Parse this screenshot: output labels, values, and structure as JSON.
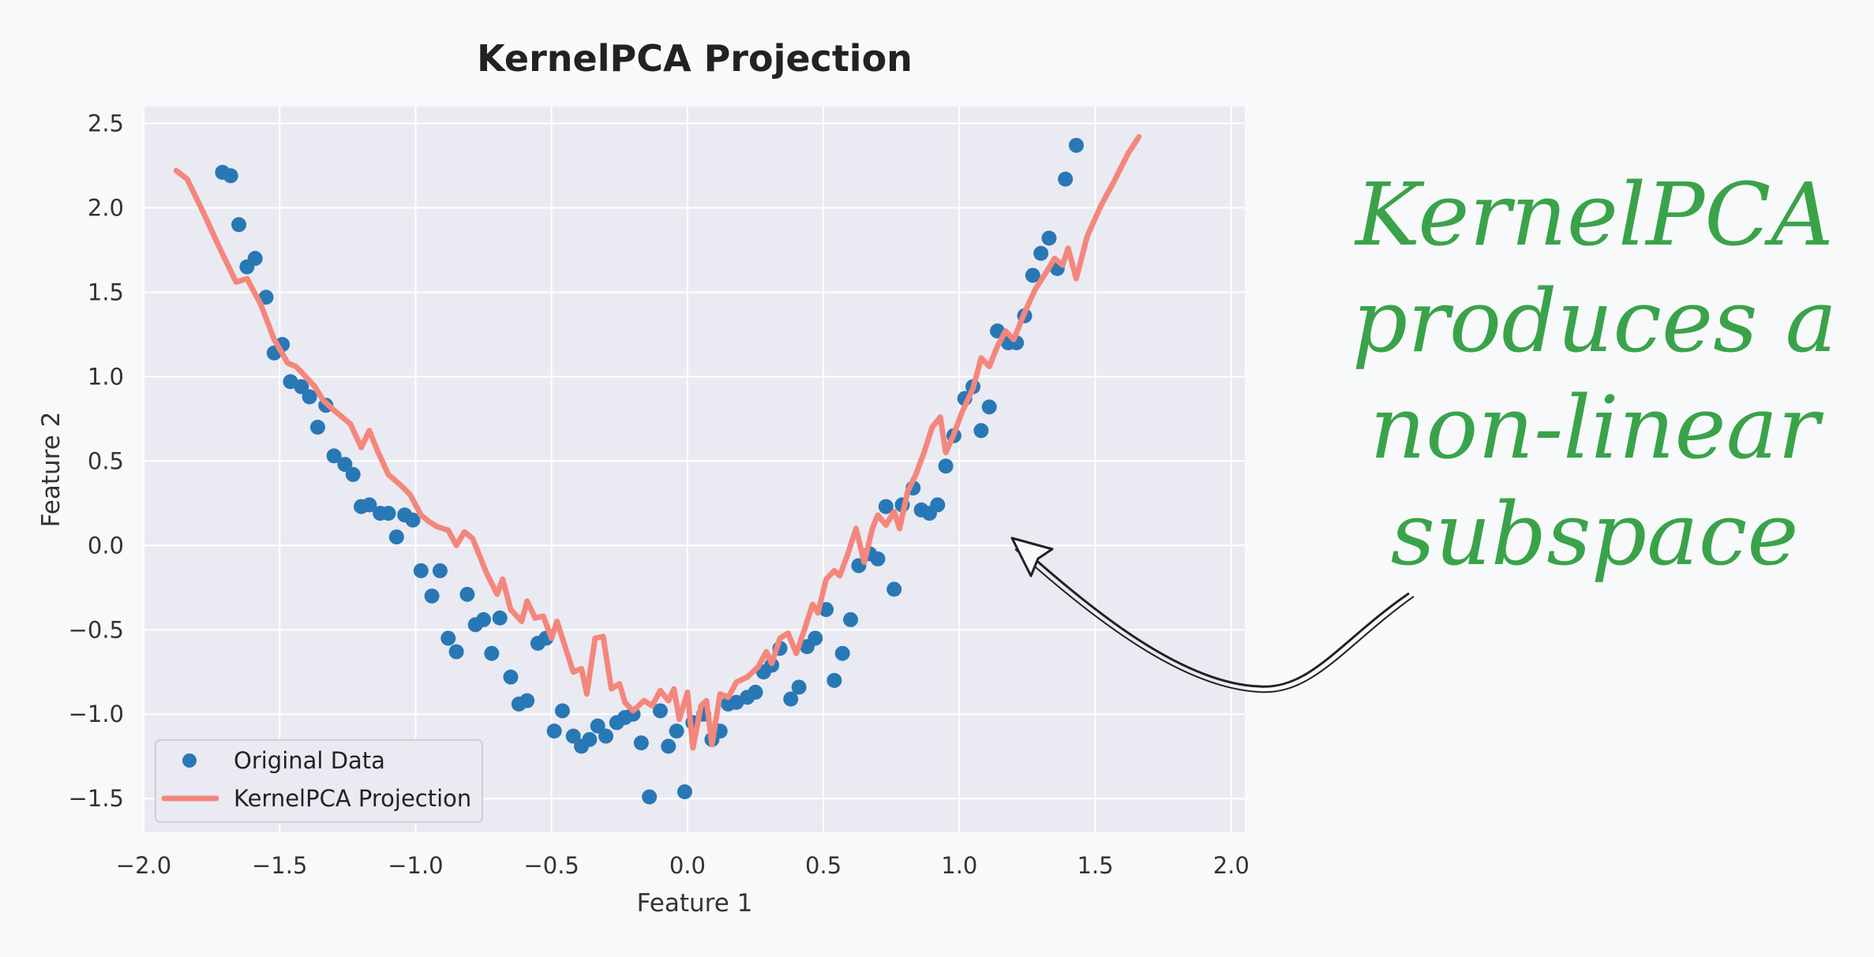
{
  "chart_data": {
    "type": "scatter",
    "title": "KernelPCA Projection",
    "xlabel": "Feature 1",
    "ylabel": "Feature 2",
    "xlim": [
      -2.0,
      2.05
    ],
    "ylim": [
      -1.7,
      2.6
    ],
    "xticks": [
      -2.0,
      -1.5,
      -1.0,
      -0.5,
      0.0,
      0.5,
      1.0,
      1.5,
      2.0
    ],
    "xtick_labels": [
      "−2.0",
      "−1.5",
      "−1.0",
      "−0.5",
      "0.0",
      "0.5",
      "1.0",
      "1.5",
      "2.0"
    ],
    "yticks": [
      -1.5,
      -1.0,
      -0.5,
      0.0,
      0.5,
      1.0,
      1.5,
      2.0,
      2.5
    ],
    "ytick_labels": [
      "−1.5",
      "−1.0",
      "−0.5",
      "0.0",
      "0.5",
      "1.0",
      "1.5",
      "2.0",
      "2.5"
    ],
    "grid": true,
    "legend_position": "bottom-left",
    "series": [
      {
        "name": "Original Data",
        "kind": "scatter",
        "color": "#2878b5",
        "points": [
          [
            -1.71,
            2.21
          ],
          [
            -1.68,
            2.19
          ],
          [
            -1.65,
            1.9
          ],
          [
            -1.62,
            1.65
          ],
          [
            -1.59,
            1.7
          ],
          [
            -1.55,
            1.47
          ],
          [
            -1.52,
            1.14
          ],
          [
            -1.49,
            1.19
          ],
          [
            -1.46,
            0.97
          ],
          [
            -1.42,
            0.94
          ],
          [
            -1.39,
            0.88
          ],
          [
            -1.36,
            0.7
          ],
          [
            -1.33,
            0.83
          ],
          [
            -1.3,
            0.53
          ],
          [
            -1.26,
            0.48
          ],
          [
            -1.23,
            0.42
          ],
          [
            -1.2,
            0.23
          ],
          [
            -1.17,
            0.24
          ],
          [
            -1.13,
            0.19
          ],
          [
            -1.1,
            0.19
          ],
          [
            -1.07,
            0.05
          ],
          [
            -1.04,
            0.18
          ],
          [
            -1.01,
            0.15
          ],
          [
            -0.98,
            -0.15
          ],
          [
            -0.94,
            -0.3
          ],
          [
            -0.91,
            -0.15
          ],
          [
            -0.88,
            -0.55
          ],
          [
            -0.85,
            -0.63
          ],
          [
            -0.81,
            -0.29
          ],
          [
            -0.78,
            -0.47
          ],
          [
            -0.75,
            -0.44
          ],
          [
            -0.72,
            -0.64
          ],
          [
            -0.69,
            -0.43
          ],
          [
            -0.65,
            -0.78
          ],
          [
            -0.62,
            -0.94
          ],
          [
            -0.59,
            -0.92
          ],
          [
            -0.55,
            -0.58
          ],
          [
            -0.52,
            -0.55
          ],
          [
            -0.49,
            -1.1
          ],
          [
            -0.46,
            -0.98
          ],
          [
            -0.42,
            -1.13
          ],
          [
            -0.39,
            -1.19
          ],
          [
            -0.36,
            -1.15
          ],
          [
            -0.33,
            -1.07
          ],
          [
            -0.3,
            -1.13
          ],
          [
            -0.26,
            -1.05
          ],
          [
            -0.23,
            -1.02
          ],
          [
            -0.2,
            -1.0
          ],
          [
            -0.17,
            -1.17
          ],
          [
            -0.14,
            -1.49
          ],
          [
            -0.1,
            -0.98
          ],
          [
            -0.07,
            -1.19
          ],
          [
            -0.04,
            -1.1
          ],
          [
            -0.01,
            -1.46
          ],
          [
            0.02,
            -1.05
          ],
          [
            0.06,
            -1.0
          ],
          [
            0.09,
            -1.15
          ],
          [
            0.12,
            -1.1
          ],
          [
            0.15,
            -0.94
          ],
          [
            0.18,
            -0.93
          ],
          [
            0.22,
            -0.9
          ],
          [
            0.25,
            -0.87
          ],
          [
            0.28,
            -0.75
          ],
          [
            0.31,
            -0.71
          ],
          [
            0.34,
            -0.61
          ],
          [
            0.38,
            -0.91
          ],
          [
            0.41,
            -0.84
          ],
          [
            0.44,
            -0.6
          ],
          [
            0.47,
            -0.55
          ],
          [
            0.51,
            -0.38
          ],
          [
            0.54,
            -0.8
          ],
          [
            0.57,
            -0.64
          ],
          [
            0.6,
            -0.44
          ],
          [
            0.63,
            -0.12
          ],
          [
            0.67,
            -0.05
          ],
          [
            0.7,
            -0.08
          ],
          [
            0.73,
            0.23
          ],
          [
            0.76,
            -0.26
          ],
          [
            0.79,
            0.24
          ],
          [
            0.83,
            0.34
          ],
          [
            0.86,
            0.21
          ],
          [
            0.89,
            0.19
          ],
          [
            0.92,
            0.24
          ],
          [
            0.95,
            0.47
          ],
          [
            0.98,
            0.65
          ],
          [
            1.02,
            0.87
          ],
          [
            1.05,
            0.94
          ],
          [
            1.08,
            0.68
          ],
          [
            1.11,
            0.82
          ],
          [
            1.14,
            1.27
          ],
          [
            1.18,
            1.2
          ],
          [
            1.21,
            1.2
          ],
          [
            1.24,
            1.36
          ],
          [
            1.27,
            1.6
          ],
          [
            1.3,
            1.73
          ],
          [
            1.33,
            1.82
          ],
          [
            1.36,
            1.64
          ],
          [
            1.39,
            2.17
          ],
          [
            1.43,
            2.37
          ]
        ]
      },
      {
        "name": "KernelPCA Projection",
        "kind": "line",
        "color": "#f4867c",
        "points": [
          [
            -1.88,
            2.22
          ],
          [
            -1.84,
            2.17
          ],
          [
            -1.78,
            1.97
          ],
          [
            -1.72,
            1.76
          ],
          [
            -1.66,
            1.56
          ],
          [
            -1.62,
            1.58
          ],
          [
            -1.57,
            1.43
          ],
          [
            -1.52,
            1.22
          ],
          [
            -1.47,
            1.08
          ],
          [
            -1.44,
            1.06
          ],
          [
            -1.41,
            1.01
          ],
          [
            -1.37,
            0.94
          ],
          [
            -1.34,
            0.86
          ],
          [
            -1.3,
            0.8
          ],
          [
            -1.24,
            0.72
          ],
          [
            -1.2,
            0.58
          ],
          [
            -1.17,
            0.68
          ],
          [
            -1.14,
            0.56
          ],
          [
            -1.1,
            0.42
          ],
          [
            -1.05,
            0.35
          ],
          [
            -1.02,
            0.3
          ],
          [
            -0.98,
            0.18
          ],
          [
            -0.95,
            0.14
          ],
          [
            -0.92,
            0.11
          ],
          [
            -0.88,
            0.09
          ],
          [
            -0.85,
            0.0
          ],
          [
            -0.82,
            0.08
          ],
          [
            -0.79,
            0.04
          ],
          [
            -0.74,
            -0.16
          ],
          [
            -0.7,
            -0.29
          ],
          [
            -0.68,
            -0.2
          ],
          [
            -0.65,
            -0.38
          ],
          [
            -0.61,
            -0.45
          ],
          [
            -0.59,
            -0.33
          ],
          [
            -0.56,
            -0.43
          ],
          [
            -0.53,
            -0.42
          ],
          [
            -0.5,
            -0.55
          ],
          [
            -0.48,
            -0.45
          ],
          [
            -0.45,
            -0.6
          ],
          [
            -0.42,
            -0.75
          ],
          [
            -0.39,
            -0.73
          ],
          [
            -0.37,
            -0.88
          ],
          [
            -0.34,
            -0.55
          ],
          [
            -0.31,
            -0.54
          ],
          [
            -0.28,
            -0.85
          ],
          [
            -0.25,
            -0.82
          ],
          [
            -0.23,
            -0.93
          ],
          [
            -0.2,
            -0.98
          ],
          [
            -0.16,
            -0.92
          ],
          [
            -0.13,
            -0.95
          ],
          [
            -0.1,
            -0.86
          ],
          [
            -0.07,
            -0.92
          ],
          [
            -0.05,
            -0.85
          ],
          [
            -0.03,
            -1.03
          ],
          [
            0.0,
            -0.87
          ],
          [
            0.02,
            -1.2
          ],
          [
            0.05,
            -0.95
          ],
          [
            0.07,
            -0.92
          ],
          [
            0.09,
            -1.18
          ],
          [
            0.12,
            -0.88
          ],
          [
            0.15,
            -0.9
          ],
          [
            0.18,
            -0.81
          ],
          [
            0.22,
            -0.78
          ],
          [
            0.26,
            -0.72
          ],
          [
            0.29,
            -0.63
          ],
          [
            0.31,
            -0.7
          ],
          [
            0.34,
            -0.55
          ],
          [
            0.37,
            -0.52
          ],
          [
            0.4,
            -0.64
          ],
          [
            0.43,
            -0.5
          ],
          [
            0.46,
            -0.35
          ],
          [
            0.48,
            -0.4
          ],
          [
            0.51,
            -0.2
          ],
          [
            0.54,
            -0.15
          ],
          [
            0.56,
            -0.18
          ],
          [
            0.59,
            -0.05
          ],
          [
            0.62,
            0.1
          ],
          [
            0.65,
            -0.1
          ],
          [
            0.68,
            0.1
          ],
          [
            0.7,
            0.18
          ],
          [
            0.73,
            0.12
          ],
          [
            0.76,
            0.2
          ],
          [
            0.78,
            0.1
          ],
          [
            0.81,
            0.32
          ],
          [
            0.84,
            0.42
          ],
          [
            0.87,
            0.55
          ],
          [
            0.9,
            0.7
          ],
          [
            0.93,
            0.76
          ],
          [
            0.95,
            0.55
          ],
          [
            0.98,
            0.66
          ],
          [
            1.01,
            0.79
          ],
          [
            1.05,
            0.93
          ],
          [
            1.08,
            1.11
          ],
          [
            1.11,
            1.06
          ],
          [
            1.14,
            1.18
          ],
          [
            1.17,
            1.27
          ],
          [
            1.2,
            1.22
          ],
          [
            1.24,
            1.38
          ],
          [
            1.28,
            1.52
          ],
          [
            1.32,
            1.62
          ],
          [
            1.35,
            1.7
          ],
          [
            1.38,
            1.66
          ],
          [
            1.4,
            1.76
          ],
          [
            1.43,
            1.58
          ],
          [
            1.47,
            1.83
          ],
          [
            1.52,
            2.01
          ],
          [
            1.57,
            2.16
          ],
          [
            1.62,
            2.32
          ],
          [
            1.66,
            2.42
          ]
        ]
      }
    ]
  },
  "annotation": {
    "lines": [
      "KernelPCA",
      "produces a",
      "non-linear",
      "subspace"
    ],
    "color": "#3aa34a"
  }
}
